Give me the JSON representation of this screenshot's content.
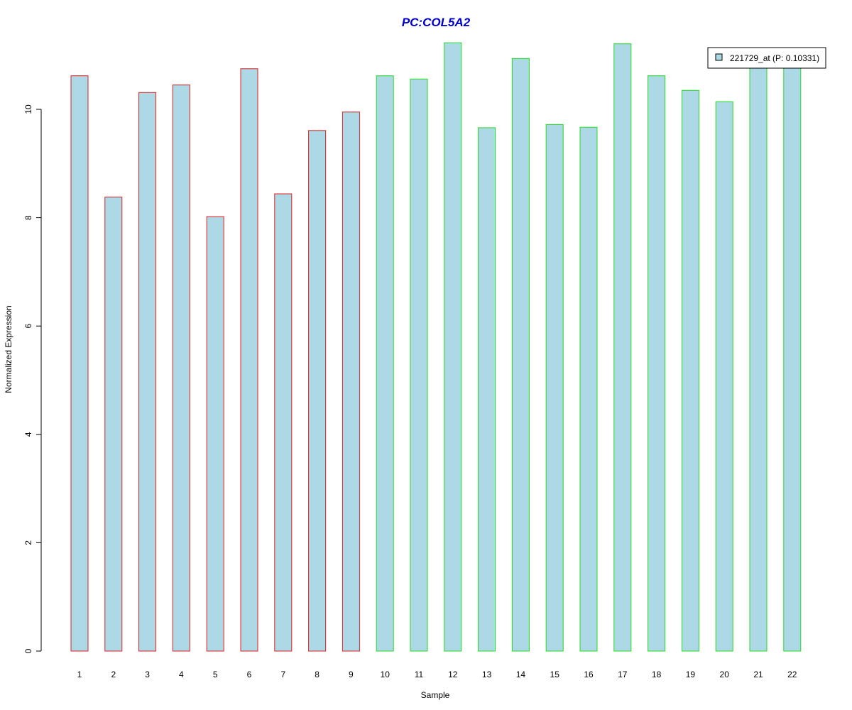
{
  "chart_data": {
    "type": "bar",
    "title": "PC:COL5A2",
    "xlabel": "Sample",
    "ylabel": "Normalized Expression",
    "ylim": [
      0,
      11.3
    ],
    "y_ticks": [
      0,
      2,
      4,
      6,
      8,
      10
    ],
    "grid": false,
    "legend_position": "top-right",
    "categories": [
      "1",
      "2",
      "3",
      "4",
      "5",
      "6",
      "7",
      "8",
      "9",
      "10",
      "11",
      "12",
      "13",
      "14",
      "15",
      "16",
      "17",
      "18",
      "19",
      "20",
      "21",
      "22"
    ],
    "series": [
      {
        "name": "221729_at (P: 0.10331)",
        "fill_color": "#add8e6",
        "values": [
          10.62,
          8.38,
          10.31,
          10.45,
          8.02,
          10.75,
          8.44,
          9.61,
          9.95,
          10.62,
          10.56,
          11.23,
          9.66,
          10.94,
          9.72,
          9.67,
          11.21,
          10.62,
          10.35,
          10.14,
          10.79,
          10.79
        ],
        "border_colors": [
          "#e0201e",
          "#e0201e",
          "#e0201e",
          "#e0201e",
          "#e0201e",
          "#e0201e",
          "#e0201e",
          "#e0201e",
          "#e0201e",
          "#22dd22",
          "#22dd22",
          "#22dd22",
          "#22dd22",
          "#22dd22",
          "#22dd22",
          "#22dd22",
          "#22dd22",
          "#22dd22",
          "#22dd22",
          "#22dd22",
          "#22dd22",
          "#22dd22"
        ]
      }
    ],
    "legend_entries": [
      "221729_at (P: 0.10331)"
    ]
  },
  "colors": {
    "title": "#0000cc",
    "bar_fill": "#add8e6",
    "group1_border": "#e0201e",
    "group2_border": "#22dd22",
    "axis": "#000000"
  }
}
